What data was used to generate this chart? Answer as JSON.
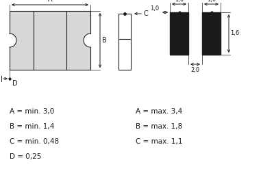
{
  "bg_color": "#ffffff",
  "line_color": "#1a1a1a",
  "fill_color_light": "#d8d8d8",
  "fill_color_dark": "#1a1a1a",
  "text_color": "#1a1a1a",
  "dims_left": [
    "A = min. 3,0",
    "B = min. 1,4",
    "C = min. 0,48",
    "D = 0,25"
  ],
  "dims_right": [
    "A = max. 3,4",
    "B = max. 1,8",
    "C = max. 1,1",
    ""
  ]
}
